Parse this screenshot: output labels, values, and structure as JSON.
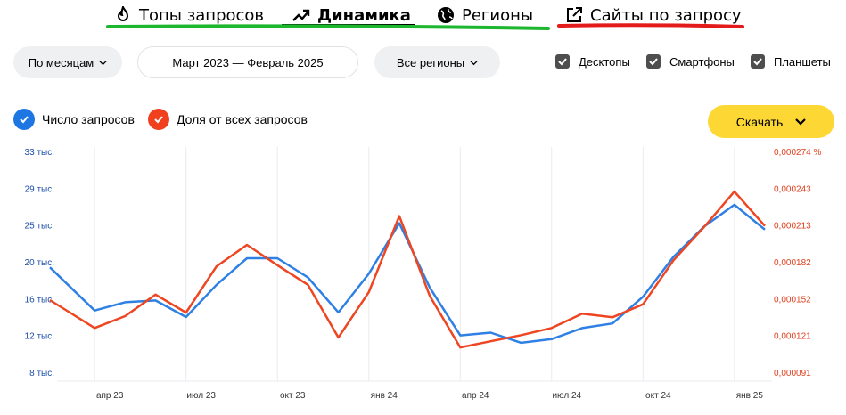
{
  "tabs": [
    {
      "label": "Топы запросов",
      "icon": "fire-icon"
    },
    {
      "label": "Динамика",
      "icon": "trend-up-icon",
      "active": true
    },
    {
      "label": "Регионы",
      "icon": "globe-icon"
    },
    {
      "label": "Сайты по запросу",
      "icon": "external-link-icon"
    }
  ],
  "controls": {
    "period_type": "По месяцам",
    "date_range": "Март 2023 — Февраль 2025",
    "region": "Все регионы",
    "devices": [
      {
        "label": "Десктопы",
        "checked": true
      },
      {
        "label": "Смартфоны",
        "checked": true
      },
      {
        "label": "Планшеты",
        "checked": true
      }
    ]
  },
  "legend": [
    {
      "label": "Число запросов",
      "color": "#1e76e3",
      "checked": true
    },
    {
      "label": "Доля от всех запросов",
      "color": "#f0401e",
      "checked": true
    }
  ],
  "download_label": "Скачать",
  "colors": {
    "accent": "#fdd835",
    "series_count": "#2f80e4",
    "series_share": "#ee4522",
    "green_mark": "#1db72f",
    "red_mark": "#e31b1b"
  },
  "chart_data": {
    "type": "line",
    "x": [
      "2023-03",
      "2023-04",
      "2023-05",
      "2023-06",
      "2023-07",
      "2023-08",
      "2023-09",
      "2023-10",
      "2023-11",
      "2023-12",
      "2024-01",
      "2024-02",
      "2024-03",
      "2024-04",
      "2024-05",
      "2024-06",
      "2024-07",
      "2024-08",
      "2024-09",
      "2024-10",
      "2024-11",
      "2024-12",
      "2025-01",
      "2025-02"
    ],
    "x_tick_labels": [
      {
        "x": "2023-04",
        "label": "апр 23"
      },
      {
        "x": "2023-07",
        "label": "июл 23"
      },
      {
        "x": "2023-10",
        "label": "окт 23"
      },
      {
        "x": "2024-01",
        "label": "янв 24"
      },
      {
        "x": "2024-04",
        "label": "апр 24"
      },
      {
        "x": "2024-07",
        "label": "июл 24"
      },
      {
        "x": "2024-10",
        "label": "окт 24"
      },
      {
        "x": "2025-01",
        "label": "янв 25"
      }
    ],
    "y_left": {
      "ticks": [
        8000,
        12000,
        16000,
        20000,
        25000,
        29000,
        33000
      ],
      "tick_labels": [
        "8 тыс.",
        "12 тыс.",
        "16 тыс.",
        "20 тыс.",
        "25 тыс.",
        "29 тыс.",
        "33 тыс."
      ]
    },
    "y_right": {
      "ticks": [
        9.1e-05,
        0.000121,
        0.000152,
        0.000182,
        0.000213,
        0.000243,
        0.000274
      ],
      "tick_labels": [
        "0,000091",
        "0,000121",
        "0,000152",
        "0,000182",
        "0,000213",
        "0,000243",
        "0,000274 %"
      ]
    },
    "series": [
      {
        "name": "Число запросов",
        "axis": "left",
        "values": [
          18000,
          14800,
          15700,
          15900,
          14100,
          17600,
          20600,
          20600,
          18400,
          14600,
          18800,
          25300,
          17300,
          12100,
          12400,
          11300,
          11700,
          12900,
          13400,
          16300,
          20800,
          24900,
          27300,
          24500
        ]
      },
      {
        "name": "Доля от всех запросов",
        "axis": "right",
        "values": [
          0.000144,
          0.000128,
          0.000138,
          0.000156,
          0.000141,
          0.000179,
          0.000197,
          0.00018,
          0.000164,
          0.00012,
          0.000158,
          0.000221,
          0.000155,
          0.000112,
          0.000117,
          0.000122,
          0.000128,
          0.00014,
          0.000137,
          0.000148,
          0.000184,
          0.000212,
          0.000241,
          0.000213
        ]
      }
    ],
    "grid": "vertical"
  }
}
